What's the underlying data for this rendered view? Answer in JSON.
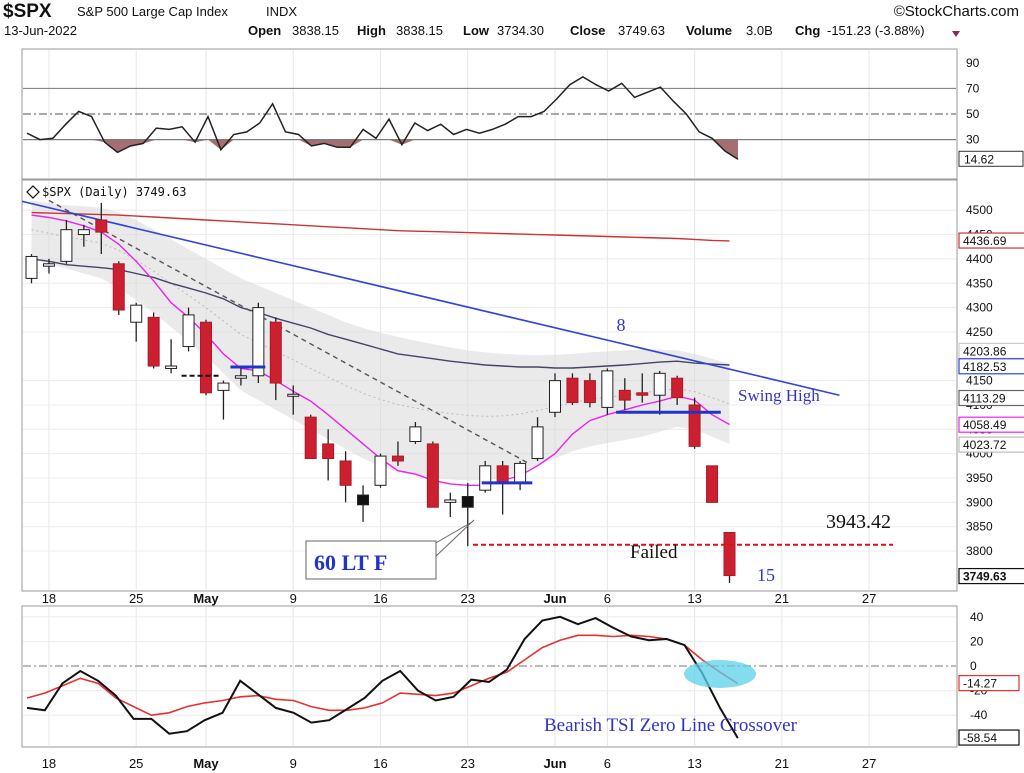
{
  "header": {
    "symbol": "$SPX",
    "name": "S&P 500 Large Cap Index",
    "exchange": "INDX",
    "date": "13-Jun-2022",
    "watermark": "©StockCharts.com",
    "open_label": "Open",
    "open": "3838.15",
    "high_label": "High",
    "high": "3838.15",
    "low_label": "Low",
    "low": "3734.30",
    "close_label": "Close",
    "close": "3749.63",
    "volume_label": "Volume",
    "volume": "3.0B",
    "chg_label": "Chg",
    "chg": "-151.23 (-3.88%)"
  },
  "colors": {
    "up_candle": "#ffffff",
    "down_candle": "#cc2030",
    "doji": "#111111",
    "ma_short": "#ee22ee",
    "ma_mid": "#444466",
    "ma_long": "#cc3333",
    "trendline": "#3344dd",
    "band_fill": "#d8d8d8",
    "annotation": "#3333cc",
    "failed_line": "#dd1111",
    "tsi_signal": "#e83030",
    "ellipse": "#5bd0e8"
  },
  "chart_data": [
    {
      "type": "line",
      "name": "RSI panel",
      "ylim": [
        0,
        100
      ],
      "y_ticks": [
        "90",
        "70",
        "50",
        "30"
      ],
      "levels": [
        70,
        50,
        30
      ],
      "values": [
        35,
        30,
        31,
        42,
        52,
        48,
        28,
        20,
        25,
        27,
        39,
        38,
        40,
        28,
        48,
        22,
        34,
        36,
        43,
        58,
        36,
        34,
        25,
        27,
        24,
        24,
        38,
        31,
        46,
        26,
        43,
        37,
        42,
        34,
        38,
        35,
        38,
        42,
        48,
        48,
        52,
        62,
        73,
        79,
        73,
        68,
        74,
        63,
        67,
        71,
        60,
        50,
        36,
        31,
        21,
        14.62
      ],
      "last_value_label": "14.62"
    },
    {
      "type": "candlestick",
      "name": "$SPX (Daily) 3749.63",
      "ylim": [
        3720,
        4560
      ],
      "y_ticks": [
        "4500",
        "4450",
        "4400",
        "4350",
        "4300",
        "4250",
        "4150",
        "4100",
        "4050",
        "4000",
        "3950",
        "3900",
        "3850",
        "3800"
      ],
      "candles": [
        {
          "o": 4360,
          "h": 4410,
          "l": 4350,
          "c": 4405
        },
        {
          "o": 4385,
          "h": 4400,
          "l": 4370,
          "c": 4390
        },
        {
          "o": 4395,
          "h": 4480,
          "l": 4390,
          "c": 4460
        },
        {
          "o": 4450,
          "h": 4470,
          "l": 4425,
          "c": 4460
        },
        {
          "o": 4480,
          "h": 4515,
          "l": 4410,
          "c": 4455
        },
        {
          "o": 4390,
          "h": 4395,
          "l": 4285,
          "c": 4295
        },
        {
          "o": 4270,
          "h": 4310,
          "l": 4230,
          "c": 4305
        },
        {
          "o": 4280,
          "h": 4290,
          "l": 4175,
          "c": 4180
        },
        {
          "o": 4175,
          "h": 4235,
          "l": 4165,
          "c": 4180
        },
        {
          "o": 4220,
          "h": 4300,
          "l": 4210,
          "c": 4285
        },
        {
          "o": 4270,
          "h": 4275,
          "l": 4120,
          "c": 4125
        },
        {
          "o": 4130,
          "h": 4150,
          "l": 4070,
          "c": 4145
        },
        {
          "o": 4155,
          "h": 4180,
          "l": 4140,
          "c": 4160
        },
        {
          "o": 4160,
          "h": 4310,
          "l": 4145,
          "c": 4300
        },
        {
          "o": 4270,
          "h": 4280,
          "l": 4110,
          "c": 4145
        },
        {
          "o": 4120,
          "h": 4140,
          "l": 4080,
          "c": 4122
        },
        {
          "o": 4075,
          "h": 4080,
          "l": 3990,
          "c": 3990
        },
        {
          "o": 4020,
          "h": 4050,
          "l": 3945,
          "c": 3990
        },
        {
          "o": 3985,
          "h": 4005,
          "l": 3900,
          "c": 3935
        },
        {
          "o": 3895,
          "h": 3935,
          "l": 3860,
          "c": 3915
        },
        {
          "o": 3935,
          "h": 4000,
          "l": 3930,
          "c": 3995
        },
        {
          "o": 3995,
          "h": 4025,
          "l": 3975,
          "c": 3985
        },
        {
          "o": 4025,
          "h": 4065,
          "l": 4020,
          "c": 4055
        },
        {
          "o": 4020,
          "h": 4025,
          "l": 3890,
          "c": 3890
        },
        {
          "o": 3900,
          "h": 3920,
          "l": 3870,
          "c": 3905
        },
        {
          "o": 3890,
          "h": 3940,
          "l": 3810,
          "c": 3912
        },
        {
          "o": 3925,
          "h": 3985,
          "l": 3920,
          "c": 3975
        },
        {
          "o": 3975,
          "h": 3985,
          "l": 3875,
          "c": 3940
        },
        {
          "o": 3940,
          "h": 3985,
          "l": 3925,
          "c": 3980
        },
        {
          "o": 3990,
          "h": 4075,
          "l": 3985,
          "c": 4055
        },
        {
          "o": 4085,
          "h": 4165,
          "l": 4075,
          "c": 4150
        },
        {
          "o": 4155,
          "h": 4165,
          "l": 4100,
          "c": 4105
        },
        {
          "o": 4150,
          "h": 4165,
          "l": 4095,
          "c": 4105
        },
        {
          "o": 4095,
          "h": 4175,
          "l": 4080,
          "c": 4170
        },
        {
          "o": 4130,
          "h": 4155,
          "l": 4090,
          "c": 4110
        },
        {
          "o": 4125,
          "h": 4165,
          "l": 4105,
          "c": 4120
        },
        {
          "o": 4120,
          "h": 4170,
          "l": 4080,
          "c": 4165
        },
        {
          "o": 4155,
          "h": 4160,
          "l": 4100,
          "c": 4115
        },
        {
          "o": 4100,
          "h": 4115,
          "l": 4010,
          "c": 4015
        },
        {
          "o": 3975,
          "h": 3975,
          "l": 3900,
          "c": 3900
        },
        {
          "o": 3838.15,
          "h": 3838.15,
          "l": 3734.3,
          "c": 3749.63
        }
      ],
      "overlays": {
        "ma_short_values": [
          4490,
          4485,
          4478,
          4468,
          4455,
          4430,
          4395,
          4355,
          4310,
          4280,
          4245,
          4205,
          4175,
          4170,
          4150,
          4128,
          4108,
          4080,
          4050,
          4020,
          3990,
          3965,
          3958,
          3945,
          3938,
          3935,
          3935,
          3945,
          3955,
          3975,
          4000,
          4040,
          4068,
          4080,
          4090,
          4100,
          4108,
          4118,
          4110,
          4080,
          4060
        ],
        "ma_mid_values": [
          4400,
          4395,
          4388,
          4385,
          4382,
          4378,
          4370,
          4362,
          4350,
          4340,
          4330,
          4318,
          4300,
          4290,
          4278,
          4268,
          4258,
          4245,
          4235,
          4225,
          4215,
          4205,
          4200,
          4195,
          4190,
          4186,
          4182,
          4180,
          4178,
          4178,
          4176,
          4176,
          4178,
          4180,
          4182,
          4185,
          4188,
          4190,
          4186,
          4184,
          4182
        ],
        "ma_long_values": [
          4495,
          4494,
          4493,
          4492,
          4491,
          4490,
          4488,
          4486,
          4484,
          4482,
          4480,
          4478,
          4476,
          4474,
          4472,
          4470,
          4468,
          4466,
          4464,
          4462,
          4460,
          4458,
          4457,
          4456,
          4455,
          4454,
          4453,
          4452,
          4451,
          4450,
          4449,
          4448,
          4447,
          4446,
          4445,
          4444,
          4443,
          4442,
          4440,
          4438,
          4437
        ],
        "band_upper": [
          4520,
          4515,
          4510,
          4508,
          4505,
          4495,
          4480,
          4460,
          4440,
          4420,
          4400,
          4380,
          4360,
          4345,
          4330,
          4315,
          4300,
          4285,
          4270,
          4258,
          4248,
          4240,
          4232,
          4225,
          4218,
          4212,
          4208,
          4205,
          4203,
          4202,
          4203,
          4205,
          4208,
          4210,
          4212,
          4214,
          4214,
          4212,
          4205,
          4195,
          4185
        ],
        "band_lower": [
          4400,
          4390,
          4380,
          4370,
          4360,
          4340,
          4315,
          4290,
          4260,
          4230,
          4200,
          4165,
          4130,
          4110,
          4090,
          4070,
          4050,
          4030,
          4010,
          3990,
          3975,
          3962,
          3955,
          3950,
          3947,
          3945,
          3945,
          3950,
          3960,
          3975,
          3990,
          4005,
          4015,
          4022,
          4028,
          4035,
          4045,
          4055,
          4050,
          4035,
          4020
        ],
        "upper_trendline": {
          "from": {
            "i": -3.7,
            "v": 4545
          },
          "to": {
            "i": 46.3,
            "v": 4120
          }
        },
        "dashed_trendline": {
          "from": {
            "i": 1,
            "v": 4520
          },
          "to": {
            "i": 28.5,
            "v": 3980
          }
        },
        "failed_level": 3813
      },
      "axis_value_labels": [
        "4436.69",
        "4203.86",
        "4182.53",
        "4113.29",
        "4058.49",
        "4023.72",
        "3749.63"
      ],
      "annotations": {
        "count_top": "8",
        "count_bottom": "15",
        "swing_high": "Swing High",
        "level_value": "3943.42",
        "failed": "Failed",
        "callout": "60 LT F"
      }
    },
    {
      "type": "line",
      "name": "TSI panel",
      "ylim": [
        -65,
        48
      ],
      "y_ticks": [
        "40",
        "20",
        "0",
        "-20",
        "-40"
      ],
      "series": [
        {
          "values": [
            -34,
            -36,
            -14,
            -4,
            -12,
            -24,
            -43,
            -43,
            -55,
            -53,
            -44,
            -38,
            -12,
            -23,
            -34,
            -38,
            -46,
            -44,
            -35,
            -26,
            -12,
            -4,
            -20,
            -28,
            -25,
            -11,
            -13,
            -3,
            22,
            37,
            40,
            34,
            39,
            31,
            24,
            21,
            22,
            17,
            -6,
            -34,
            -58.54
          ]
        },
        {
          "values": [
            -26,
            -22,
            -16,
            -10,
            -14,
            -26,
            -33,
            -40,
            -38,
            -33,
            -30,
            -28,
            -25,
            -24,
            -27,
            -28,
            -33,
            -36,
            -36,
            -34,
            -30,
            -22,
            -23,
            -24,
            -22,
            -16,
            -10,
            -5,
            5,
            15,
            21,
            25,
            25,
            24,
            25,
            24,
            22,
            17,
            5,
            -5,
            -14.27
          ]
        }
      ],
      "value_labels": [
        "-14.27",
        "-58.54"
      ],
      "annotation": "Bearish TSI Zero Line Crossover"
    }
  ],
  "x_axis": {
    "labels": [
      {
        "i": 1,
        "text": "18"
      },
      {
        "i": 6,
        "text": "25"
      },
      {
        "i": 10,
        "text": "May"
      },
      {
        "i": 15,
        "text": "9"
      },
      {
        "i": 20,
        "text": "16"
      },
      {
        "i": 25,
        "text": "23"
      },
      {
        "i": 30,
        "text": "Jun"
      },
      {
        "i": 33,
        "text": "6"
      },
      {
        "i": 38,
        "text": "13"
      },
      {
        "i": 43,
        "text": "21"
      },
      {
        "i": 48,
        "text": "27"
      }
    ]
  }
}
